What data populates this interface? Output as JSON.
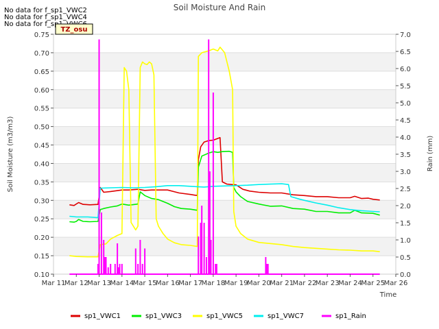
{
  "notes": [
    "No data for f_sp1_VWC2",
    "No data for f_sp1_VWC4",
    "No data for f_sp1_VWC6"
  ],
  "chart_data": {
    "type": "line",
    "title": "Soil Moisture And Rain",
    "xlabel": "Time",
    "ylabel": "Soil Moisture (m3/m3)",
    "y2label": "Rain (mm)",
    "badge": "TZ_osu",
    "xlim": [
      11,
      26
    ],
    "ylim": [
      0.1,
      0.75
    ],
    "y2lim": [
      0.0,
      7.0
    ],
    "xticks": [
      {
        "v": 11,
        "label": "Mar 11"
      },
      {
        "v": 12,
        "label": "Mar 12"
      },
      {
        "v": 13,
        "label": "Mar 13"
      },
      {
        "v": 14,
        "label": "Mar 14"
      },
      {
        "v": 15,
        "label": "Mar 15"
      },
      {
        "v": 16,
        "label": "Mar 16"
      },
      {
        "v": 17,
        "label": "Mar 17"
      },
      {
        "v": 18,
        "label": "Mar 18"
      },
      {
        "v": 19,
        "label": "Mar 19"
      },
      {
        "v": 20,
        "label": "Mar 20"
      },
      {
        "v": 21,
        "label": "Mar 21"
      },
      {
        "v": 22,
        "label": "Mar 22"
      },
      {
        "v": 23,
        "label": "Mar 23"
      },
      {
        "v": 24,
        "label": "Mar 24"
      },
      {
        "v": 25,
        "label": "Mar 25"
      },
      {
        "v": 26,
        "label": "Mar 26"
      }
    ],
    "yticks": [
      {
        "v": 0.1,
        "label": "0.10"
      },
      {
        "v": 0.15,
        "label": "0.15"
      },
      {
        "v": 0.2,
        "label": "0.20"
      },
      {
        "v": 0.25,
        "label": "0.25"
      },
      {
        "v": 0.3,
        "label": "0.30"
      },
      {
        "v": 0.35,
        "label": "0.35"
      },
      {
        "v": 0.4,
        "label": "0.40"
      },
      {
        "v": 0.45,
        "label": "0.45"
      },
      {
        "v": 0.5,
        "label": "0.50"
      },
      {
        "v": 0.55,
        "label": "0.55"
      },
      {
        "v": 0.6,
        "label": "0.60"
      },
      {
        "v": 0.65,
        "label": "0.65"
      },
      {
        "v": 0.7,
        "label": "0.70"
      },
      {
        "v": 0.75,
        "label": "0.75"
      }
    ],
    "y2ticks": [
      {
        "v": 0.0,
        "label": "0.0"
      },
      {
        "v": 0.5,
        "label": "0.5"
      },
      {
        "v": 1.0,
        "label": "1.0"
      },
      {
        "v": 1.5,
        "label": "1.5"
      },
      {
        "v": 2.0,
        "label": "2.0"
      },
      {
        "v": 2.5,
        "label": "2.5"
      },
      {
        "v": 3.0,
        "label": "3.0"
      },
      {
        "v": 3.5,
        "label": "3.5"
      },
      {
        "v": 4.0,
        "label": "4.0"
      },
      {
        "v": 4.5,
        "label": "4.5"
      },
      {
        "v": 5.0,
        "label": "5.0"
      },
      {
        "v": 5.5,
        "label": "5.5"
      },
      {
        "v": 6.0,
        "label": "6.0"
      },
      {
        "v": 6.5,
        "label": "6.5"
      },
      {
        "v": 7.0,
        "label": "7.0"
      }
    ],
    "grid": "horizontal bands",
    "legend_position": "bottom",
    "series": [
      {
        "name": "sp1_VWC1",
        "color": "#dd0000",
        "axis": "left",
        "points": [
          [
            11.7,
            0.288
          ],
          [
            11.9,
            0.286
          ],
          [
            12.1,
            0.294
          ],
          [
            12.3,
            0.289
          ],
          [
            12.6,
            0.288
          ],
          [
            12.95,
            0.289
          ],
          [
            13.05,
            0.335
          ],
          [
            13.2,
            0.322
          ],
          [
            13.5,
            0.324
          ],
          [
            14.0,
            0.328
          ],
          [
            14.3,
            0.328
          ],
          [
            14.7,
            0.33
          ],
          [
            15.0,
            0.327
          ],
          [
            15.3,
            0.328
          ],
          [
            16.0,
            0.328
          ],
          [
            16.5,
            0.32
          ],
          [
            17.0,
            0.316
          ],
          [
            17.3,
            0.313
          ],
          [
            17.35,
            0.41
          ],
          [
            17.45,
            0.445
          ],
          [
            17.6,
            0.458
          ],
          [
            17.8,
            0.462
          ],
          [
            18.0,
            0.463
          ],
          [
            18.3,
            0.47
          ],
          [
            18.4,
            0.35
          ],
          [
            18.6,
            0.344
          ],
          [
            19.0,
            0.342
          ],
          [
            19.3,
            0.33
          ],
          [
            19.6,
            0.325
          ],
          [
            20.0,
            0.322
          ],
          [
            20.5,
            0.32
          ],
          [
            21.0,
            0.32
          ],
          [
            21.5,
            0.315
          ],
          [
            22.0,
            0.313
          ],
          [
            22.5,
            0.31
          ],
          [
            23.0,
            0.31
          ],
          [
            23.5,
            0.307
          ],
          [
            24.0,
            0.307
          ],
          [
            24.2,
            0.311
          ],
          [
            24.5,
            0.305
          ],
          [
            24.8,
            0.306
          ],
          [
            25.0,
            0.303
          ],
          [
            25.3,
            0.301
          ]
        ]
      },
      {
        "name": "sp1_VWC3",
        "color": "#00ee00",
        "axis": "left",
        "points": [
          [
            11.7,
            0.242
          ],
          [
            11.9,
            0.241
          ],
          [
            12.0,
            0.243
          ],
          [
            12.1,
            0.248
          ],
          [
            12.3,
            0.243
          ],
          [
            12.6,
            0.242
          ],
          [
            12.95,
            0.243
          ],
          [
            13.05,
            0.275
          ],
          [
            13.2,
            0.278
          ],
          [
            13.5,
            0.282
          ],
          [
            13.8,
            0.285
          ],
          [
            14.0,
            0.29
          ],
          [
            14.3,
            0.287
          ],
          [
            14.7,
            0.29
          ],
          [
            14.8,
            0.323
          ],
          [
            15.0,
            0.313
          ],
          [
            15.3,
            0.305
          ],
          [
            15.6,
            0.302
          ],
          [
            16.0,
            0.292
          ],
          [
            16.3,
            0.283
          ],
          [
            16.6,
            0.278
          ],
          [
            17.0,
            0.276
          ],
          [
            17.3,
            0.273
          ],
          [
            17.35,
            0.39
          ],
          [
            17.5,
            0.42
          ],
          [
            17.8,
            0.428
          ],
          [
            18.0,
            0.432
          ],
          [
            18.2,
            0.43
          ],
          [
            18.4,
            0.432
          ],
          [
            18.7,
            0.433
          ],
          [
            18.85,
            0.43
          ],
          [
            18.9,
            0.335
          ],
          [
            19.0,
            0.323
          ],
          [
            19.2,
            0.31
          ],
          [
            19.5,
            0.297
          ],
          [
            20.0,
            0.29
          ],
          [
            20.5,
            0.284
          ],
          [
            21.0,
            0.285
          ],
          [
            21.5,
            0.278
          ],
          [
            22.0,
            0.276
          ],
          [
            22.5,
            0.27
          ],
          [
            23.0,
            0.27
          ],
          [
            23.5,
            0.266
          ],
          [
            24.0,
            0.266
          ],
          [
            24.2,
            0.273
          ],
          [
            24.5,
            0.266
          ],
          [
            25.0,
            0.265
          ],
          [
            25.3,
            0.26
          ]
        ]
      },
      {
        "name": "sp1_VWC5",
        "color": "#ffff00",
        "axis": "left",
        "points": [
          [
            11.7,
            0.15
          ],
          [
            12.0,
            0.148
          ],
          [
            12.5,
            0.147
          ],
          [
            12.95,
            0.147
          ],
          [
            13.05,
            0.18
          ],
          [
            13.3,
            0.182
          ],
          [
            13.5,
            0.195
          ],
          [
            13.8,
            0.205
          ],
          [
            14.0,
            0.21
          ],
          [
            14.1,
            0.66
          ],
          [
            14.2,
            0.65
          ],
          [
            14.3,
            0.6
          ],
          [
            14.4,
            0.24
          ],
          [
            14.6,
            0.22
          ],
          [
            14.7,
            0.23
          ],
          [
            14.8,
            0.66
          ],
          [
            14.9,
            0.675
          ],
          [
            15.0,
            0.67
          ],
          [
            15.1,
            0.668
          ],
          [
            15.2,
            0.675
          ],
          [
            15.3,
            0.67
          ],
          [
            15.4,
            0.64
          ],
          [
            15.5,
            0.25
          ],
          [
            15.6,
            0.23
          ],
          [
            15.8,
            0.21
          ],
          [
            16.0,
            0.195
          ],
          [
            16.3,
            0.185
          ],
          [
            16.6,
            0.18
          ],
          [
            17.0,
            0.178
          ],
          [
            17.3,
            0.175
          ],
          [
            17.35,
            0.69
          ],
          [
            17.5,
            0.7
          ],
          [
            17.8,
            0.705
          ],
          [
            18.0,
            0.71
          ],
          [
            18.2,
            0.705
          ],
          [
            18.3,
            0.715
          ],
          [
            18.5,
            0.7
          ],
          [
            18.7,
            0.65
          ],
          [
            18.85,
            0.6
          ],
          [
            18.9,
            0.27
          ],
          [
            19.0,
            0.23
          ],
          [
            19.2,
            0.21
          ],
          [
            19.5,
            0.195
          ],
          [
            20.0,
            0.186
          ],
          [
            20.5,
            0.183
          ],
          [
            21.0,
            0.18
          ],
          [
            21.5,
            0.175
          ],
          [
            22.0,
            0.172
          ],
          [
            22.5,
            0.17
          ],
          [
            23.0,
            0.168
          ],
          [
            23.5,
            0.166
          ],
          [
            24.0,
            0.165
          ],
          [
            24.5,
            0.163
          ],
          [
            25.0,
            0.163
          ],
          [
            25.3,
            0.161
          ]
        ]
      },
      {
        "name": "sp1_VWC7",
        "color": "#00eeee",
        "axis": "left",
        "points": [
          [
            11.7,
            0.257
          ],
          [
            12.0,
            0.255
          ],
          [
            12.5,
            0.255
          ],
          [
            12.95,
            0.253
          ],
          [
            13.05,
            0.333
          ],
          [
            13.5,
            0.334
          ],
          [
            14.0,
            0.335
          ],
          [
            14.5,
            0.334
          ],
          [
            15.0,
            0.335
          ],
          [
            15.5,
            0.337
          ],
          [
            16.0,
            0.34
          ],
          [
            16.5,
            0.34
          ],
          [
            17.0,
            0.338
          ],
          [
            17.3,
            0.337
          ],
          [
            17.6,
            0.336
          ],
          [
            18.0,
            0.338
          ],
          [
            18.5,
            0.339
          ],
          [
            19.0,
            0.34
          ],
          [
            19.5,
            0.341
          ],
          [
            20.0,
            0.343
          ],
          [
            20.5,
            0.344
          ],
          [
            21.0,
            0.345
          ],
          [
            21.3,
            0.343
          ],
          [
            21.4,
            0.31
          ],
          [
            21.8,
            0.303
          ],
          [
            22.0,
            0.3
          ],
          [
            22.5,
            0.293
          ],
          [
            23.0,
            0.287
          ],
          [
            23.5,
            0.28
          ],
          [
            24.0,
            0.275
          ],
          [
            24.5,
            0.272
          ],
          [
            25.0,
            0.27
          ],
          [
            25.3,
            0.269
          ]
        ]
      },
      {
        "name": "sp1_Rain",
        "color": "#ff00ff",
        "axis": "right",
        "style": "spikes",
        "points": [
          [
            12.95,
            0.3
          ],
          [
            13.0,
            6.85
          ],
          [
            13.1,
            1.8
          ],
          [
            13.2,
            1.0
          ],
          [
            13.25,
            0.5
          ],
          [
            13.3,
            0.5
          ],
          [
            13.4,
            0.2
          ],
          [
            13.5,
            0.3
          ],
          [
            13.7,
            0.3
          ],
          [
            13.8,
            0.9
          ],
          [
            13.85,
            0.2
          ],
          [
            13.9,
            0.3
          ],
          [
            14.0,
            0.3
          ],
          [
            14.6,
            0.75
          ],
          [
            14.7,
            0.3
          ],
          [
            14.8,
            1.0
          ],
          [
            14.9,
            0.3
          ],
          [
            15.0,
            0.75
          ],
          [
            17.35,
            1.1
          ],
          [
            17.45,
            1.5
          ],
          [
            17.5,
            2.0
          ],
          [
            17.6,
            1.5
          ],
          [
            17.7,
            0.5
          ],
          [
            17.8,
            6.85
          ],
          [
            17.85,
            3.0
          ],
          [
            17.9,
            1.0
          ],
          [
            18.0,
            5.3
          ],
          [
            18.1,
            0.3
          ],
          [
            18.15,
            0.3
          ],
          [
            20.3,
            0.5
          ],
          [
            20.35,
            0.3
          ],
          [
            20.4,
            0.3
          ]
        ]
      }
    ]
  }
}
